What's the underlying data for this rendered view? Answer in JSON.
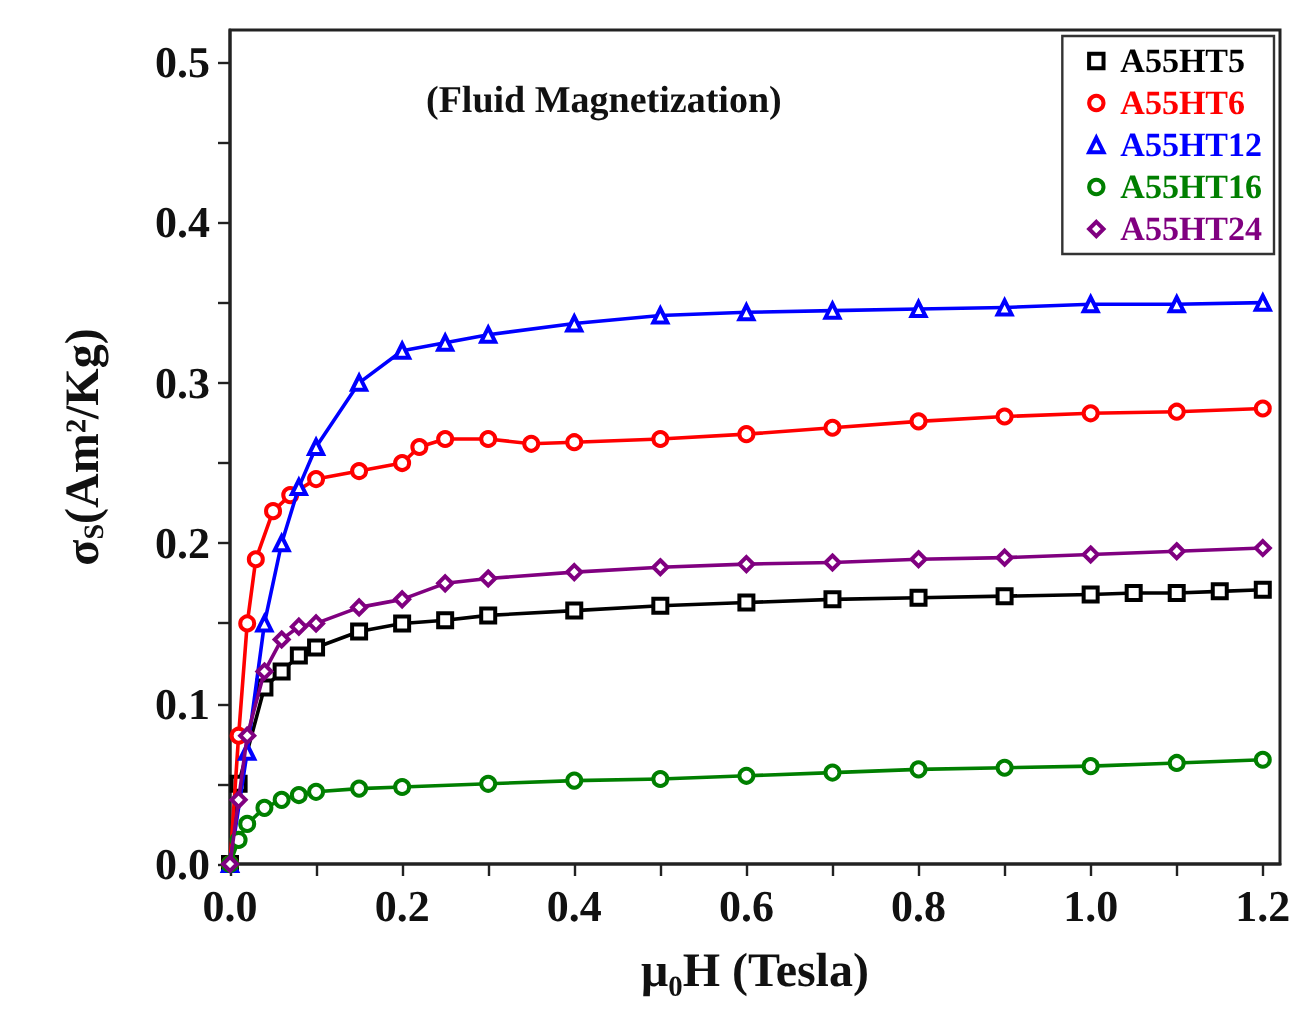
{
  "chart_data": {
    "type": "line",
    "title": "(Fluid Magnetization)",
    "xlabel": "μ₀H (Tesla)",
    "ylabel": "σ$_{S}$(Am²/Kg)",
    "xlim": [
      0,
      1.22
    ],
    "ylim": [
      0,
      0.52
    ],
    "xticks": [
      {
        "value": 0,
        "label": "0.0"
      },
      {
        "value": 0.1,
        "label": null
      },
      {
        "value": 0.2,
        "label": "0.2"
      },
      {
        "value": 0.3,
        "label": null
      },
      {
        "value": 0.4,
        "label": "0.4"
      },
      {
        "value": 0.5,
        "label": null
      },
      {
        "value": 0.6,
        "label": "0.6"
      },
      {
        "value": 0.7,
        "label": null
      },
      {
        "value": 0.8,
        "label": "0.8"
      },
      {
        "value": 0.9,
        "label": null
      },
      {
        "value": 1,
        "label": "1.0"
      },
      {
        "value": 1.1,
        "label": null
      },
      {
        "value": 1.2,
        "label": "1.2"
      }
    ],
    "yticks": [
      {
        "value": 0,
        "label": "0.0"
      },
      {
        "value": 0.05,
        "label": null
      },
      {
        "value": 0.1,
        "label": "0.1"
      },
      {
        "value": 0.15,
        "label": null
      },
      {
        "value": 0.2,
        "label": "0.2"
      },
      {
        "value": 0.25,
        "label": null
      },
      {
        "value": 0.3,
        "label": "0.3"
      },
      {
        "value": 0.35,
        "label": null
      },
      {
        "value": 0.4,
        "label": "0.4"
      },
      {
        "value": 0.45,
        "label": null
      },
      {
        "value": 0.5,
        "label": "0.5"
      }
    ],
    "grid": false,
    "legend": "top right",
    "series": [
      {
        "name": "A55HT5",
        "color": "#000000",
        "marker": "square",
        "x": [
          0,
          0.01,
          0.04,
          0.06,
          0.08,
          0.1,
          0.15,
          0.2,
          0.25,
          0.3,
          0.4,
          0.5,
          0.6,
          0.7,
          0.8,
          0.9,
          1.0,
          1.05,
          1.1,
          1.15,
          1.2
        ],
        "values": [
          0,
          0.05,
          0.11,
          0.12,
          0.13,
          0.135,
          0.145,
          0.15,
          0.152,
          0.155,
          0.158,
          0.161,
          0.163,
          0.165,
          0.166,
          0.167,
          0.168,
          0.169,
          0.169,
          0.17,
          0.171
        ]
      },
      {
        "name": "A55HT6",
        "color": "#ff0000",
        "marker": "circle",
        "x": [
          0,
          0.01,
          0.02,
          0.03,
          0.05,
          0.07,
          0.1,
          0.15,
          0.2,
          0.22,
          0.25,
          0.3,
          0.35,
          0.4,
          0.5,
          0.6,
          0.7,
          0.8,
          0.9,
          1.0,
          1.1,
          1.2
        ],
        "values": [
          0,
          0.08,
          0.15,
          0.19,
          0.22,
          0.23,
          0.24,
          0.245,
          0.25,
          0.26,
          0.265,
          0.265,
          0.262,
          0.263,
          0.265,
          0.268,
          0.272,
          0.276,
          0.279,
          0.281,
          0.282,
          0.284
        ]
      },
      {
        "name": "A55HT12",
        "color": "#0000ff",
        "marker": "triangle",
        "x": [
          0,
          0.02,
          0.04,
          0.06,
          0.08,
          0.1,
          0.15,
          0.2,
          0.25,
          0.3,
          0.4,
          0.5,
          0.6,
          0.7,
          0.8,
          0.9,
          1.0,
          1.1,
          1.2
        ],
        "values": [
          0,
          0.07,
          0.15,
          0.2,
          0.235,
          0.26,
          0.3,
          0.32,
          0.325,
          0.33,
          0.337,
          0.342,
          0.344,
          0.345,
          0.346,
          0.347,
          0.349,
          0.349,
          0.35
        ]
      },
      {
        "name": "A55HT16",
        "color": "#007f00",
        "marker": "circle",
        "x": [
          0,
          0.01,
          0.02,
          0.04,
          0.06,
          0.08,
          0.1,
          0.15,
          0.2,
          0.3,
          0.4,
          0.5,
          0.6,
          0.7,
          0.8,
          0.9,
          1.0,
          1.1,
          1.2
        ],
        "values": [
          0,
          0.015,
          0.025,
          0.035,
          0.04,
          0.043,
          0.045,
          0.047,
          0.048,
          0.05,
          0.052,
          0.053,
          0.055,
          0.057,
          0.059,
          0.06,
          0.061,
          0.063,
          0.065
        ]
      },
      {
        "name": "A55HT24",
        "color": "#800080",
        "marker": "diamond",
        "x": [
          0,
          0.01,
          0.02,
          0.04,
          0.06,
          0.08,
          0.1,
          0.15,
          0.2,
          0.25,
          0.3,
          0.4,
          0.5,
          0.6,
          0.7,
          0.8,
          0.9,
          1.0,
          1.1,
          1.2
        ],
        "values": [
          0,
          0.04,
          0.08,
          0.12,
          0.14,
          0.148,
          0.15,
          0.16,
          0.165,
          0.175,
          0.178,
          0.182,
          0.185,
          0.187,
          0.188,
          0.19,
          0.191,
          0.193,
          0.195,
          0.197
        ]
      }
    ]
  }
}
